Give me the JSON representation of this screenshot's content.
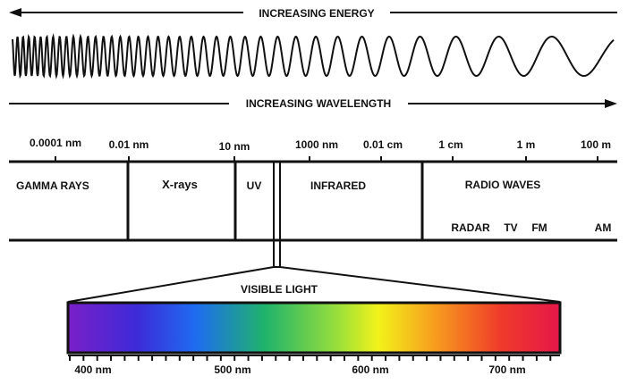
{
  "arrows": {
    "energy": "INCREASING ENERGY",
    "wavelength": "INCREASING WAVELENGTH"
  },
  "scale_ticks": [
    "0.0001 nm",
    "0.01 nm",
    "10 nm",
    "1000 nm",
    "0.01 cm",
    "1 cm",
    "1 m",
    "100 m"
  ],
  "bands": {
    "gamma": "GAMMA RAYS",
    "xrays": "X-rays",
    "uv": "UV",
    "infrared": "INFRARED",
    "radio": "RADIO WAVES"
  },
  "radio_sub": {
    "radar": "RADAR",
    "tv": "TV",
    "fm": "FM",
    "am": "AM"
  },
  "visible": {
    "title": "VISIBLE LIGHT",
    "ticks": [
      "400 nm",
      "500 nm",
      "600 nm",
      "700 nm"
    ]
  },
  "colors": {
    "line": "#111111",
    "spectrum": [
      "#7a1fc8",
      "#3d2bd8",
      "#1e6cf0",
      "#1fb36b",
      "#9be03a",
      "#f2f21a",
      "#f79a1e",
      "#ef3a2a",
      "#e5174a"
    ]
  }
}
